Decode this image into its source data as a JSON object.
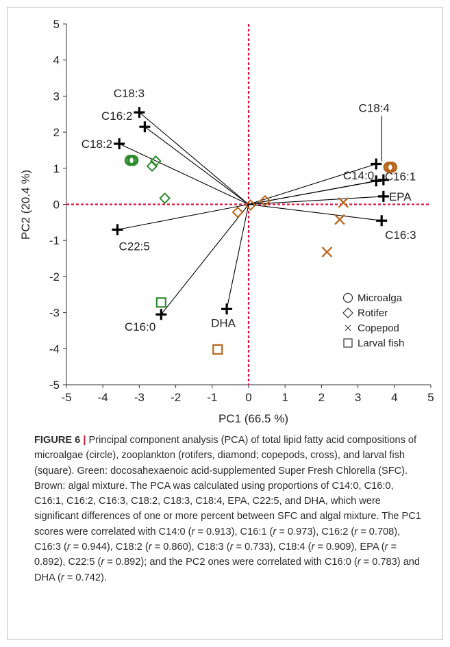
{
  "chart_data": {
    "type": "scatter",
    "xlabel": "PC1  (66.5 %)",
    "ylabel": "PC2  (20.4 %)",
    "xlim": [
      -5,
      5
    ],
    "ylim": [
      -5,
      5
    ],
    "xticks": [
      -5,
      -4,
      -3,
      -2,
      -1,
      0,
      1,
      2,
      3,
      4,
      5
    ],
    "yticks": [
      -5,
      -4,
      -3,
      -2,
      -1,
      0,
      1,
      2,
      3,
      4,
      5
    ],
    "colors": {
      "green": "#2e8b2e",
      "brown": "#b8651a",
      "axis_line": "#e0103a",
      "loading": "#000000"
    },
    "loadings": [
      {
        "name": "C18:3",
        "x": -3.0,
        "y": 2.55
      },
      {
        "name": "C16:2",
        "x": -2.85,
        "y": 2.15
      },
      {
        "name": "C18:2",
        "x": -3.55,
        "y": 1.68
      },
      {
        "name": "C22:5",
        "x": -3.6,
        "y": -0.7
      },
      {
        "name": "C16:0",
        "x": -2.4,
        "y": -3.05
      },
      {
        "name": "DHA",
        "x": -0.6,
        "y": -2.9
      },
      {
        "name": "C18:4",
        "x": 3.5,
        "y": 1.12
      },
      {
        "name": "C14:0",
        "x": 3.5,
        "y": 0.65
      },
      {
        "name": "C16:1",
        "x": 3.7,
        "y": 0.68
      },
      {
        "name": "EPA",
        "x": 3.7,
        "y": 0.22
      },
      {
        "name": "C16:3",
        "x": 3.65,
        "y": -0.45
      }
    ],
    "series": [
      {
        "name": "Microalga",
        "marker": "circle",
        "points": [
          {
            "x": -3.25,
            "y": 1.22,
            "group": "green"
          },
          {
            "x": 3.85,
            "y": 1.03,
            "group": "brown"
          }
        ]
      },
      {
        "name": "Rotifer",
        "marker": "diamond",
        "points": [
          {
            "x": -2.55,
            "y": 1.2,
            "group": "green"
          },
          {
            "x": -2.65,
            "y": 1.06,
            "group": "green"
          },
          {
            "x": -2.3,
            "y": 0.17,
            "group": "green"
          },
          {
            "x": 0.45,
            "y": 0.1,
            "group": "brown"
          },
          {
            "x": 0.05,
            "y": -0.02,
            "group": "brown"
          },
          {
            "x": -0.3,
            "y": -0.22,
            "group": "brown"
          }
        ]
      },
      {
        "name": "Copepod",
        "marker": "cross",
        "points": [
          {
            "x": 2.6,
            "y": 0.05,
            "group": "brown"
          },
          {
            "x": 2.5,
            "y": -0.42,
            "group": "brown"
          },
          {
            "x": 2.15,
            "y": -1.32,
            "group": "brown"
          }
        ]
      },
      {
        "name": "Larval fish",
        "marker": "square",
        "points": [
          {
            "x": -2.4,
            "y": -2.72,
            "group": "green"
          },
          {
            "x": -0.85,
            "y": -4.02,
            "group": "brown"
          }
        ]
      }
    ],
    "legend": [
      "Microalga",
      "Rotifer",
      "Copepod",
      "Larval fish"
    ],
    "legend_position": "bottom-right"
  },
  "caption": {
    "label": "FIGURE 6",
    "separator": "|",
    "parts": [
      {
        "t": " Principal component analysis (PCA) of total lipid fatty acid compositions of microalgae (circle), zooplankton (rotifers, diamond; copepods, cross), and larval fish (square). Green: docosahexaenoic acid-supplemented Super Fresh Chlorella (SFC). Brown: algal mixture. The PCA was calculated using proportions of C14:0, C16:0, C16:1, C16:2, C16:3, C18:2, C18:3, C18:4, EPA, C22:5, and DHA, which were significant differences of one or more percent between SFC and algal mixture. The PC1 scores were correlated with C14:0 ("
      },
      {
        "t": "r",
        "i": true
      },
      {
        "t": " = 0.913), C16:1 ("
      },
      {
        "t": "r",
        "i": true
      },
      {
        "t": " = 0.973), C16:2 ("
      },
      {
        "t": "r",
        "i": true
      },
      {
        "t": " = 0.708), C16:3 ("
      },
      {
        "t": "r",
        "i": true
      },
      {
        "t": " = 0.944), C18:2 ("
      },
      {
        "t": "r",
        "i": true
      },
      {
        "t": " = 0.860), C18:3 ("
      },
      {
        "t": "r",
        "i": true
      },
      {
        "t": " = 0.733), C18:4 ("
      },
      {
        "t": "r",
        "i": true
      },
      {
        "t": " = 0.909), EPA ("
      },
      {
        "t": "r",
        "i": true
      },
      {
        "t": " = 0.892), C22:5 ("
      },
      {
        "t": "r",
        "i": true
      },
      {
        "t": " = 0.892); and the PC2 ones were correlated with C16:0 ("
      },
      {
        "t": "r",
        "i": true
      },
      {
        "t": " = 0.783) and DHA ("
      },
      {
        "t": "r",
        "i": true
      },
      {
        "t": " = 0.742)."
      }
    ]
  }
}
